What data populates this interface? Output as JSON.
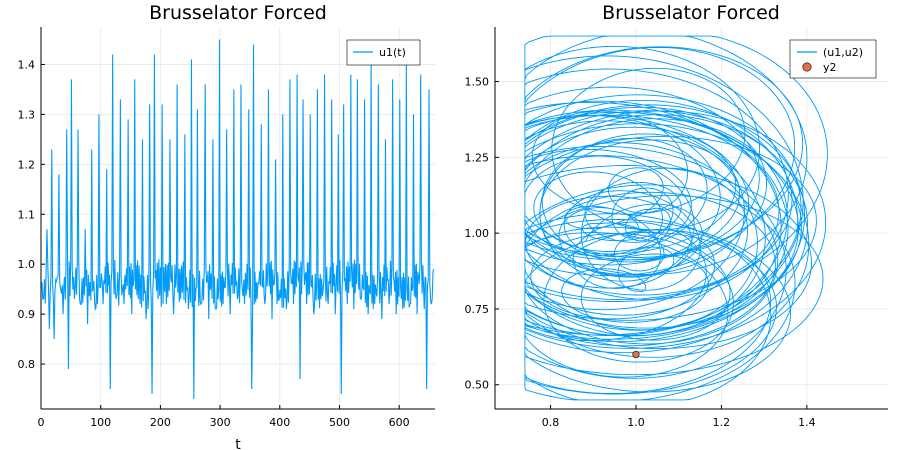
{
  "chart_data": [
    {
      "type": "line",
      "title": "Brusselator Forced",
      "xlabel": "t",
      "ylabel": "",
      "xlim": [
        0,
        660
      ],
      "ylim": [
        0.71,
        1.475
      ],
      "xticks": [
        0,
        100,
        200,
        300,
        400,
        500,
        600
      ],
      "yticks": [
        0.8,
        0.9,
        1.0,
        1.1,
        1.2,
        1.3,
        1.4
      ],
      "xtick_labels": [
        "0",
        "100",
        "200",
        "300",
        "400",
        "500",
        "600"
      ],
      "ytick_labels": [
        "0.8",
        "0.9",
        "1.0",
        "1.1",
        "1.2",
        "1.3",
        "1.4"
      ],
      "grid": true,
      "legend_position": "top-right",
      "series": [
        {
          "name": "u1(t)",
          "color": "#009af9",
          "approx_spikes": [
            [
              3,
              0.93
            ],
            [
              10,
              1.07
            ],
            [
              14,
              0.87
            ],
            [
              18,
              1.23
            ],
            [
              22,
              0.85
            ],
            [
              30,
              1.18
            ],
            [
              37,
              0.9
            ],
            [
              43,
              1.27
            ],
            [
              46,
              0.79
            ],
            [
              51,
              1.37
            ],
            [
              56,
              0.93
            ],
            [
              62,
              1.27
            ],
            [
              66,
              0.92
            ],
            [
              74,
              1.07
            ],
            [
              78,
              0.88
            ],
            [
              85,
              1.23
            ],
            [
              91,
              0.91
            ],
            [
              97,
              1.3
            ],
            [
              104,
              0.92
            ],
            [
              110,
              1.19
            ],
            [
              116,
              0.75
            ],
            [
              120,
              1.42
            ],
            [
              126,
              0.93
            ],
            [
              133,
              1.33
            ],
            [
              139,
              0.92
            ],
            [
              146,
              1.29
            ],
            [
              152,
              0.9
            ],
            [
              157,
              1.37
            ],
            [
              163,
              0.93
            ],
            [
              170,
              1.25
            ],
            [
              176,
              0.89
            ],
            [
              182,
              1.32
            ],
            [
              186,
              0.74
            ],
            [
              190,
              1.42
            ],
            [
              196,
              0.93
            ],
            [
              203,
              1.32
            ],
            [
              210,
              0.92
            ],
            [
              216,
              1.25
            ],
            [
              222,
              0.9
            ],
            [
              228,
              1.36
            ],
            [
              234,
              0.93
            ],
            [
              241,
              1.26
            ],
            [
              247,
              0.91
            ],
            [
              252,
              1.41
            ],
            [
              256,
              0.73
            ],
            [
              262,
              1.31
            ],
            [
              268,
              0.92
            ],
            [
              275,
              1.36
            ],
            [
              281,
              0.89
            ],
            [
              288,
              1.25
            ],
            [
              293,
              0.91
            ],
            [
              299,
              1.45
            ],
            [
              305,
              0.92
            ],
            [
              311,
              1.27
            ],
            [
              317,
              0.9
            ],
            [
              323,
              1.35
            ],
            [
              329,
              0.93
            ],
            [
              335,
              1.36
            ],
            [
              341,
              0.92
            ],
            [
              348,
              1.31
            ],
            [
              353,
              0.75
            ],
            [
              356,
              1.44
            ],
            [
              362,
              0.93
            ],
            [
              369,
              1.28
            ],
            [
              375,
              0.92
            ],
            [
              381,
              1.35
            ],
            [
              387,
              0.89
            ],
            [
              393,
              1.21
            ],
            [
              399,
              0.93
            ],
            [
              405,
              1.3
            ],
            [
              411,
              0.91
            ],
            [
              417,
              1.37
            ],
            [
              423,
              0.92
            ],
            [
              429,
              1.38
            ],
            [
              434,
              0.77
            ],
            [
              439,
              1.33
            ],
            [
              445,
              0.92
            ],
            [
              451,
              1.3
            ],
            [
              457,
              0.9
            ],
            [
              463,
              1.35
            ],
            [
              469,
              0.93
            ],
            [
              475,
              1.38
            ],
            [
              481,
              0.92
            ],
            [
              487,
              1.33
            ],
            [
              493,
              0.9
            ],
            [
              498,
              1.26
            ],
            [
              503,
              0.74
            ],
            [
              507,
              1.32
            ],
            [
              513,
              0.92
            ],
            [
              519,
              1.38
            ],
            [
              524,
              0.91
            ],
            [
              530,
              1.37
            ],
            [
              536,
              0.93
            ],
            [
              542,
              1.33
            ],
            [
              548,
              0.9
            ],
            [
              553,
              1.41
            ],
            [
              559,
              0.92
            ],
            [
              565,
              1.36
            ],
            [
              571,
              0.89
            ],
            [
              577,
              1.25
            ],
            [
              583,
              0.92
            ],
            [
              589,
              1.37
            ],
            [
              595,
              0.9
            ],
            [
              601,
              1.33
            ],
            [
              606,
              0.91
            ],
            [
              612,
              1.4
            ],
            [
              618,
              0.92
            ],
            [
              624,
              1.3
            ],
            [
              630,
              0.9
            ],
            [
              636,
              1.38
            ],
            [
              642,
              0.91
            ],
            [
              646,
              0.75
            ],
            [
              650,
              1.35
            ],
            [
              654,
              0.92
            ],
            [
              658,
              0.99
            ]
          ]
        }
      ]
    },
    {
      "type": "scatter",
      "title": "Brusselator Forced",
      "xlabel": "",
      "ylabel": "",
      "xlim": [
        0.67,
        1.59
      ],
      "ylim": [
        0.42,
        1.68
      ],
      "xticks": [
        0.8,
        1.0,
        1.2,
        1.4
      ],
      "yticks": [
        0.5,
        0.75,
        1.0,
        1.25,
        1.5
      ],
      "xtick_labels": [
        "0.8",
        "1.0",
        "1.2",
        "1.4"
      ],
      "ytick_labels": [
        "0.50",
        "0.75",
        "1.00",
        "1.25",
        "1.50"
      ],
      "grid": true,
      "legend_position": "top-right",
      "series": [
        {
          "name": "(u1,u2)",
          "color": "#009af9",
          "kind": "phase-trajectory",
          "x_range": [
            0.74,
            1.45
          ],
          "y_range": [
            0.45,
            1.65
          ],
          "attractors": [
            {
              "x": 1.0,
              "y": 1.3
            },
            {
              "x": 1.0,
              "y": 0.7
            }
          ]
        },
        {
          "name": "y2",
          "color": "#e26f46",
          "kind": "marker",
          "points": [
            {
              "x": 1.0,
              "y": 0.6
            }
          ]
        }
      ]
    }
  ]
}
